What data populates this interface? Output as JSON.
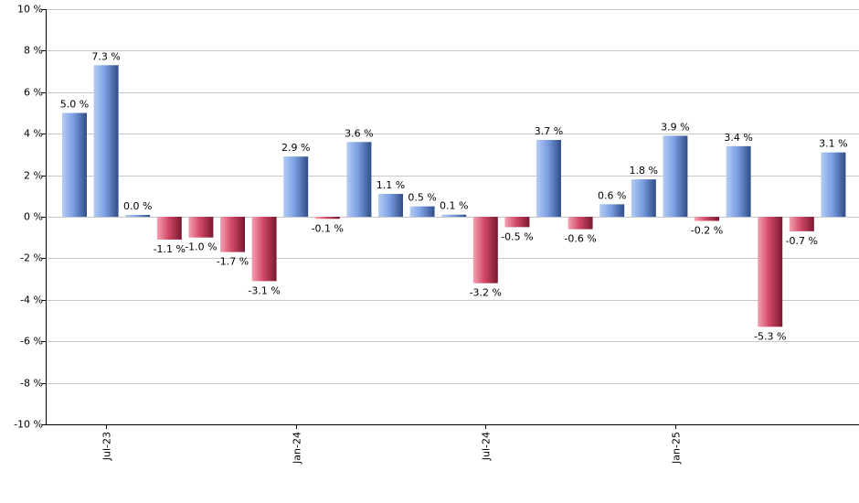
{
  "chart_data": {
    "type": "bar",
    "title": "",
    "xlabel": "",
    "ylabel": "",
    "ylim": [
      -10,
      10
    ],
    "y_ticks": [
      10,
      8,
      6,
      4,
      2,
      0,
      -2,
      -4,
      -6,
      -8,
      -10
    ],
    "y_tick_labels": [
      "10 %",
      "8 %",
      "6 %",
      "4 %",
      "2 %",
      "0 %",
      "-2 %",
      "-4 %",
      "-6 %",
      "-8 %",
      "-10 %"
    ],
    "grid": true,
    "x_tick_labels": [
      {
        "label": "Jul-23",
        "index": 1
      },
      {
        "label": "Jan-24",
        "index": 7
      },
      {
        "label": "Jul-24",
        "index": 13
      },
      {
        "label": "Jan-25",
        "index": 19
      }
    ],
    "values": [
      5.0,
      7.3,
      0.0,
      -1.1,
      -1.0,
      -1.7,
      -3.1,
      2.9,
      -0.1,
      3.6,
      1.1,
      0.5,
      0.1,
      -3.2,
      -0.5,
      3.7,
      -0.6,
      0.6,
      1.8,
      3.9,
      -0.2,
      3.4,
      -5.3,
      -0.7,
      3.1
    ],
    "data_labels": [
      "5.0 %",
      "7.3 %",
      "0.0 %",
      "-1.1 %",
      "-1.0 %",
      "-1.7 %",
      "-3.1 %",
      "2.9 %",
      "-0.1 %",
      "3.6 %",
      "1.1 %",
      "0.5 %",
      "0.1 %",
      "-3.2 %",
      "-0.5 %",
      "3.7 %",
      "-0.6 %",
      "0.6 %",
      "1.8 %",
      "3.9 %",
      "-0.2 %",
      "3.4 %",
      "-5.3 %",
      "-0.7 %",
      "3.1 %"
    ],
    "colors": {
      "positive_light": "#b4cdf2",
      "positive_mid": "#7b9fe4",
      "positive_dark": "#2f4d86",
      "negative_light": "#f2a3b4",
      "negative_mid": "#d44a66",
      "negative_dark": "#7a1830",
      "grid": "#c8c8c8",
      "axis": "#000000"
    }
  }
}
